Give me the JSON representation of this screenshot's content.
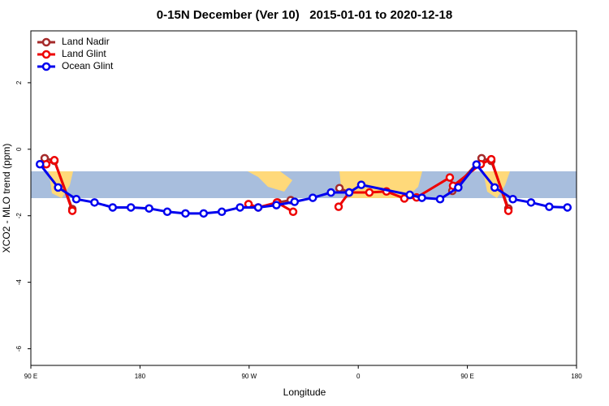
{
  "chart_data": {
    "type": "line",
    "title": "0-15N December (Ver 10)   2015-01-01 to 2020-12-18",
    "x_label": "Longitude",
    "y_label": "XCO2 - MLO trend (ppm)",
    "xlim": [
      90,
      540
    ],
    "xticks": [
      {
        "value": 90,
        "label": "90 E"
      },
      180,
      {
        "value": 270,
        "label": "90 W"
      },
      {
        "value": 360,
        "label": "0"
      },
      {
        "value": 450,
        "label": "90 E"
      },
      {
        "value": 540,
        "label": "180"
      }
    ],
    "ylim": [
      -6.5,
      3.56
    ],
    "yticks": [
      -6,
      -4,
      -2,
      0,
      2
    ],
    "legend": "top-left",
    "series": [
      {
        "name": "Land Nadir",
        "color": "#a52a2a",
        "x": [
          101.4,
          109.4,
          124.2,
          null,
          293.6,
          304.3,
          null,
          344.5,
          352.5,
          null,
          437.6,
          461.7,
          469.7,
          483.8
        ],
        "values": [
          -0.27,
          -0.35,
          -1.8,
          null,
          -1.6,
          -1.53,
          null,
          -1.17,
          -1.3,
          null,
          -1.25,
          -0.27,
          -0.35,
          -1.78
        ]
      },
      {
        "name": "Land Glint",
        "color": "#ee0000",
        "x": [
          102.7,
          109.4,
          124.2,
          null,
          269.5,
          277.5,
          292.9,
          306.3,
          null,
          343.8,
          352.5,
          369.2,
          383.3,
          398.0,
          408.1,
          435.5,
          438.2,
          461.0,
          469.7,
          483.8
        ],
        "values": [
          -0.45,
          -0.33,
          -1.85,
          null,
          -1.65,
          -1.75,
          -1.6,
          -1.88,
          null,
          -1.73,
          -1.3,
          -1.3,
          -1.27,
          -1.48,
          -1.45,
          -0.85,
          -1.1,
          -0.45,
          -0.3,
          -1.85
        ]
      },
      {
        "name": "Ocean Glint",
        "color": "#0000ee",
        "x": [
          97.5,
          112.5,
          127.5,
          142.5,
          157.5,
          172.5,
          187.5,
          202.5,
          217.5,
          232.5,
          247.5,
          262.5,
          277.5,
          292.5,
          307.5,
          322.5,
          337.5,
          352.5,
          362.5,
          402.5,
          412.5,
          427.5,
          442.5,
          457.5,
          472.5,
          487.5,
          502.5,
          517.5,
          532.5
        ],
        "values": [
          -0.45,
          -1.15,
          -1.5,
          -1.6,
          -1.75,
          -1.75,
          -1.78,
          -1.88,
          -1.93,
          -1.93,
          -1.88,
          -1.75,
          -1.75,
          -1.68,
          -1.58,
          -1.46,
          -1.3,
          -1.3,
          -1.07,
          -1.37,
          -1.46,
          -1.5,
          -1.15,
          -0.46,
          -1.15,
          -1.5,
          -1.6,
          -1.73,
          -1.75
        ]
      }
    ]
  }
}
